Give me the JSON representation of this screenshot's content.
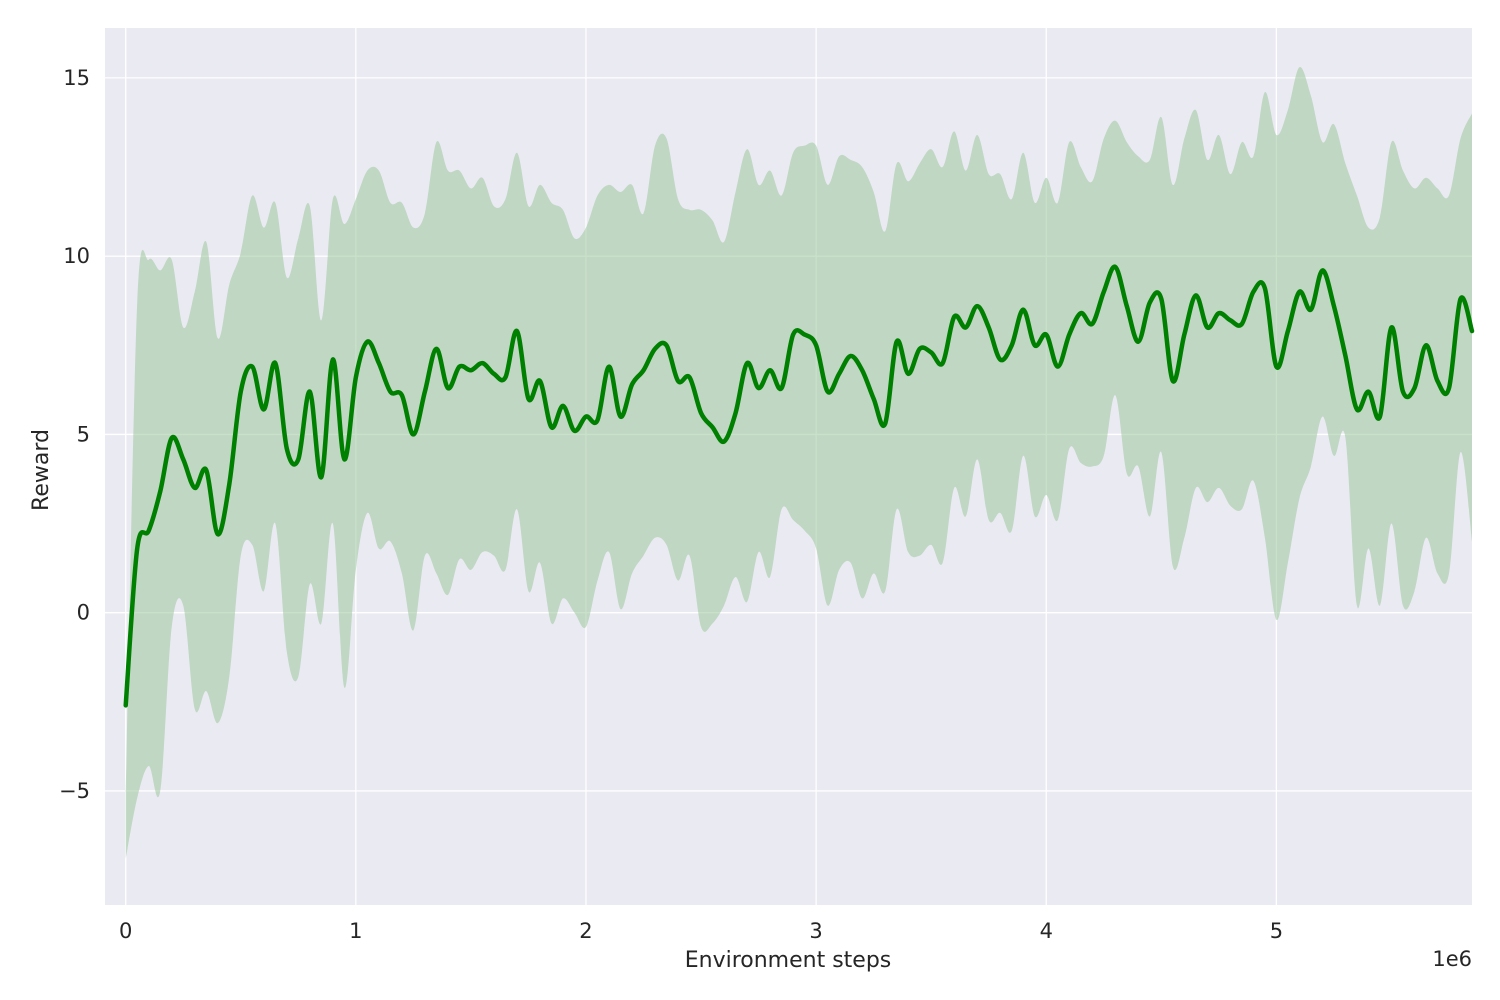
{
  "chart_data": {
    "type": "line",
    "title": "",
    "xlabel": "Environment steps",
    "ylabel": "Reward",
    "x_offset_text": "1e6",
    "xlim": [
      -0.09,
      5.85
    ],
    "ylim": [
      -8.2,
      16.4
    ],
    "x_ticks": [
      {
        "value": 0,
        "label": "0"
      },
      {
        "value": 1,
        "label": "1"
      },
      {
        "value": 2,
        "label": "2"
      },
      {
        "value": 3,
        "label": "3"
      },
      {
        "value": 4,
        "label": "4"
      },
      {
        "value": 5,
        "label": "5"
      }
    ],
    "y_ticks": [
      {
        "value": -5,
        "label": "−5"
      },
      {
        "value": 0,
        "label": "0"
      },
      {
        "value": 5,
        "label": "5"
      },
      {
        "value": 10,
        "label": "10"
      },
      {
        "value": 15,
        "label": "15"
      }
    ],
    "grid": true,
    "background_color": "#eaeaf2",
    "line_color": "#008000",
    "band_color": "#9cc79c",
    "series": [
      {
        "x": [
          0,
          0.05,
          0.1,
          0.15,
          0.2,
          0.25,
          0.3,
          0.35,
          0.4,
          0.45,
          0.5,
          0.55,
          0.6,
          0.65,
          0.7,
          0.75,
          0.8,
          0.85,
          0.9,
          0.95,
          1.0,
          1.05,
          1.1,
          1.15,
          1.2,
          1.25,
          1.3,
          1.35,
          1.4,
          1.45,
          1.5,
          1.55,
          1.6,
          1.65,
          1.7,
          1.75,
          1.8,
          1.85,
          1.9,
          1.95,
          2.0,
          2.05,
          2.1,
          2.15,
          2.2,
          2.25,
          2.3,
          2.35,
          2.4,
          2.45,
          2.5,
          2.55,
          2.6,
          2.65,
          2.7,
          2.75,
          2.8,
          2.85,
          2.9,
          2.95,
          3.0,
          3.05,
          3.1,
          3.15,
          3.2,
          3.25,
          3.3,
          3.35,
          3.4,
          3.45,
          3.5,
          3.55,
          3.6,
          3.65,
          3.7,
          3.75,
          3.8,
          3.85,
          3.9,
          3.95,
          4.0,
          4.05,
          4.1,
          4.15,
          4.2,
          4.25,
          4.3,
          4.35,
          4.4,
          4.45,
          4.5,
          4.55,
          4.6,
          4.65,
          4.7,
          4.75,
          4.8,
          4.85,
          4.9,
          4.95,
          5.0,
          5.05,
          5.1,
          5.15,
          5.2,
          5.25,
          5.3,
          5.35,
          5.4,
          5.45,
          5.5,
          5.55,
          5.6,
          5.65,
          5.7,
          5.75,
          5.8,
          5.85
        ],
        "mean": [
          -2.6,
          1.8,
          2.3,
          3.4,
          4.9,
          4.3,
          3.5,
          4.0,
          2.2,
          3.6,
          6.2,
          6.9,
          5.7,
          7.0,
          4.6,
          4.3,
          6.2,
          3.8,
          7.1,
          4.3,
          6.6,
          7.6,
          7.0,
          6.2,
          6.1,
          5.0,
          6.2,
          7.4,
          6.3,
          6.9,
          6.8,
          7.0,
          6.7,
          6.6,
          7.9,
          6.0,
          6.5,
          5.2,
          5.8,
          5.1,
          5.5,
          5.4,
          6.9,
          5.5,
          6.4,
          6.8,
          7.4,
          7.5,
          6.5,
          6.6,
          5.6,
          5.2,
          4.8,
          5.6,
          7.0,
          6.3,
          6.8,
          6.3,
          7.8,
          7.8,
          7.5,
          6.2,
          6.7,
          7.2,
          6.8,
          6.0,
          5.3,
          7.6,
          6.7,
          7.4,
          7.3,
          7.0,
          8.3,
          8.0,
          8.6,
          8.0,
          7.1,
          7.5,
          8.5,
          7.5,
          7.8,
          6.9,
          7.8,
          8.4,
          8.1,
          9.0,
          9.7,
          8.6,
          7.6,
          8.7,
          8.8,
          6.5,
          7.8,
          8.9,
          8.0,
          8.4,
          8.2,
          8.1,
          9.0,
          9.1,
          6.9,
          7.9,
          9.0,
          8.5,
          9.6,
          8.6,
          7.2,
          5.7,
          6.2,
          5.5,
          8.0,
          6.2,
          6.3,
          7.5,
          6.5,
          6.3,
          8.8,
          7.9
        ],
        "upper": [
          -5.0,
          8.7,
          9.9,
          9.6,
          9.9,
          8.0,
          9.0,
          10.4,
          7.7,
          9.2,
          10.1,
          11.7,
          10.8,
          11.5,
          9.4,
          10.5,
          11.4,
          8.2,
          11.6,
          10.9,
          11.6,
          12.4,
          12.4,
          11.5,
          11.5,
          10.8,
          11.2,
          13.2,
          12.4,
          12.4,
          11.9,
          12.2,
          11.4,
          11.6,
          12.9,
          11.4,
          12.0,
          11.5,
          11.3,
          10.5,
          10.8,
          11.7,
          12.0,
          11.8,
          12.0,
          11.2,
          13.1,
          13.3,
          11.6,
          11.3,
          11.3,
          11.0,
          10.4,
          11.8,
          13.0,
          12.0,
          12.4,
          11.7,
          12.9,
          13.1,
          13.1,
          12.0,
          12.8,
          12.7,
          12.5,
          11.8,
          10.7,
          12.6,
          12.1,
          12.6,
          13.0,
          12.5,
          13.5,
          12.4,
          13.4,
          12.3,
          12.3,
          11.6,
          12.9,
          11.5,
          12.2,
          11.5,
          13.2,
          12.5,
          12.1,
          13.3,
          13.8,
          13.2,
          12.8,
          12.7,
          13.9,
          12.0,
          13.3,
          14.1,
          12.7,
          13.4,
          12.3,
          13.2,
          12.8,
          14.6,
          13.4,
          14.1,
          15.3,
          14.5,
          13.2,
          13.7,
          12.6,
          11.7,
          10.8,
          11.1,
          13.2,
          12.4,
          11.9,
          12.2,
          11.9,
          11.7,
          13.3,
          14.0
        ],
        "lower": [
          -6.9,
          -5.2,
          -4.3,
          -5.0,
          -0.4,
          0.2,
          -2.7,
          -2.2,
          -3.1,
          -1.8,
          1.6,
          1.9,
          0.6,
          2.5,
          -1.1,
          -1.8,
          0.8,
          -0.3,
          2.5,
          -2.1,
          1.2,
          2.8,
          1.8,
          2.0,
          1.1,
          -0.5,
          1.6,
          1.1,
          0.5,
          1.5,
          1.2,
          1.7,
          1.6,
          1.2,
          2.9,
          0.6,
          1.4,
          -0.3,
          0.4,
          0.0,
          -0.4,
          0.9,
          1.7,
          0.1,
          1.1,
          1.6,
          2.1,
          1.9,
          0.9,
          1.6,
          -0.4,
          -0.3,
          0.2,
          1.0,
          0.3,
          1.7,
          1.0,
          2.9,
          2.6,
          2.3,
          1.8,
          0.2,
          1.2,
          1.4,
          0.4,
          1.1,
          0.6,
          2.9,
          1.7,
          1.6,
          1.9,
          1.4,
          3.5,
          2.7,
          4.3,
          2.6,
          2.8,
          2.3,
          4.4,
          2.7,
          3.3,
          2.6,
          4.6,
          4.2,
          4.1,
          4.4,
          6.1,
          3.9,
          4.1,
          2.7,
          4.5,
          1.3,
          2.1,
          3.5,
          3.1,
          3.5,
          3.0,
          2.9,
          3.7,
          2.1,
          -0.2,
          1.4,
          3.2,
          4.1,
          5.5,
          4.4,
          4.9,
          0.2,
          1.8,
          0.2,
          2.5,
          0.2,
          0.6,
          2.1,
          1.1,
          1.1,
          4.5,
          2.0
        ]
      }
    ]
  }
}
